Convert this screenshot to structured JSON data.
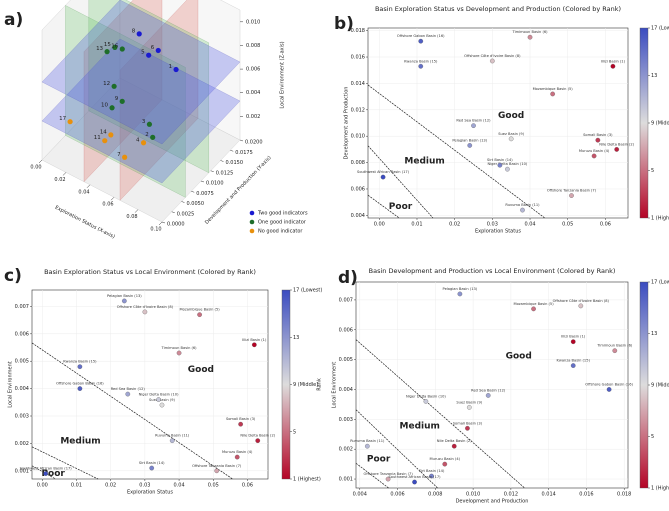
{
  "chart_data": [
    {
      "type": "scatter3d",
      "panel_label": "a)",
      "xlabel": "Exploration Status (X-axis)",
      "ylabel": "Development and Production (Y-axis)",
      "zlabel": "Local Environment (Z-axis)",
      "xlim": [
        0,
        0.1
      ],
      "ylim": [
        0,
        0.02
      ],
      "zlim": [
        0,
        0.011
      ],
      "xticks": [
        {
          "value": 0,
          "label": "0.00"
        },
        0.02,
        0.04,
        0.06,
        0.08,
        {
          "value": 0.1,
          "label": "0.10"
        }
      ],
      "yticks": [
        {
          "value": 0,
          "label": "0.0000"
        },
        0.0025,
        {
          "value": 0.005,
          "label": "0.0050"
        },
        0.0075,
        {
          "value": 0.01,
          "label": "0.0100"
        },
        0.0125,
        {
          "value": 0.015,
          "label": "0.0150"
        },
        0.0175,
        {
          "value": 0.02,
          "label": "0.0200"
        }
      ],
      "zticks": [
        0.002,
        0.004,
        0.006,
        0.008,
        {
          "value": 0.01,
          "label": "0.010"
        }
      ],
      "groups": [
        {
          "name": "Two good indicators",
          "color": "#1a1ad0"
        },
        {
          "name": "One good indicator",
          "color": "#1e6e2a"
        },
        {
          "name": "No good indicator",
          "color": "#e8900c"
        }
      ],
      "ranks": [
        1,
        2,
        3,
        4,
        5,
        6,
        7,
        8,
        9,
        10,
        11,
        12,
        13,
        14,
        15,
        16,
        17
      ],
      "group": [
        0,
        1,
        1,
        2,
        0,
        0,
        2,
        0,
        1,
        1,
        2,
        1,
        1,
        2,
        1,
        1,
        2
      ],
      "x": [
        0.062,
        0.063,
        0.058,
        0.057,
        0.046,
        0.04,
        0.051,
        0.03,
        0.035,
        0.034,
        0.038,
        0.025,
        0.024,
        0.032,
        0.011,
        0.011,
        0.001
      ],
      "y": [
        0.0153,
        0.009,
        0.0097,
        0.0085,
        0.0132,
        0.0175,
        0.0055,
        0.0157,
        0.0098,
        0.0075,
        0.0044,
        0.0108,
        0.0093,
        0.0078,
        0.0153,
        0.0172,
        0.0069
      ],
      "z": [
        0.0056,
        0.0021,
        0.0027,
        0.0015,
        0.0067,
        0.0053,
        0.001,
        0.0068,
        0.0034,
        0.0036,
        0.0021,
        0.0038,
        0.0072,
        0.0011,
        0.0048,
        0.004,
        0.0009
      ]
    },
    {
      "type": "scatter",
      "panel_label": "b)",
      "title": "Basin Exploration Status vs Development and Production (Colored by Rank)",
      "xlabel": "Exploration Status",
      "ylabel": "Development and Production",
      "xlim": [
        -0.003,
        0.066
      ],
      "ylim": [
        0.0038,
        0.0182
      ],
      "xticks": [
        {
          "value": 0,
          "label": "0.00"
        },
        0.01,
        0.02,
        0.03,
        0.04,
        0.05,
        0.06
      ],
      "yticks": [
        0.004,
        0.006,
        0.008,
        {
          "value": 0.01,
          "label": "0.010"
        },
        0.012,
        0.014,
        0.016,
        0.018
      ],
      "grid": true,
      "regions": [
        "Good",
        "Medium",
        "Poor"
      ],
      "labels": [
        "Illizi Basin (1)",
        "Nile Delta Basin (2)",
        "Somali Basin (3)",
        "Muruzu Basin (4)",
        "Mozambique Basin (5)",
        "Timimoun Basin (6)",
        "Offshore Tanzania Basin (7)",
        "Offshore Côte d'Ivoire Basin (8)",
        "Suez Basin (9)",
        "Niger Delta Basin (10)",
        "Ruvuma Basin (11)",
        "Red Sea Basin (12)",
        "Pelagian Basin (13)",
        "Sirt Basin (14)",
        "Kwanza Basin (15)",
        "Offshore Gabon Basin (16)",
        "Southwest African Basin (17)"
      ],
      "ranks": [
        1,
        2,
        3,
        4,
        5,
        6,
        7,
        8,
        9,
        10,
        11,
        12,
        13,
        14,
        15,
        16,
        17
      ],
      "x": [
        0.062,
        0.063,
        0.058,
        0.057,
        0.046,
        0.04,
        0.051,
        0.03,
        0.035,
        0.034,
        0.038,
        0.025,
        0.024,
        0.032,
        0.011,
        0.011,
        0.001
      ],
      "y": [
        0.0153,
        0.009,
        0.0097,
        0.0085,
        0.0132,
        0.0175,
        0.0055,
        0.0157,
        0.0098,
        0.0075,
        0.0044,
        0.0108,
        0.0093,
        0.0078,
        0.0153,
        0.0172,
        0.0069
      ],
      "colorbar": {
        "label": "Rank",
        "clim": [
          1,
          17
        ],
        "colors": [
          "#b40426",
          "#dddcdc",
          "#3b4cc0"
        ],
        "ticks": [
          {
            "value": 17,
            "label": "17 (Lowest)"
          },
          13,
          {
            "value": 9,
            "label": "9 (Middle)"
          },
          5,
          {
            "value": 1,
            "label": "1 (Highest)"
          }
        ]
      }
    },
    {
      "type": "scatter",
      "panel_label": "c)",
      "title": "Basin Exploration Status vs Local Environment (Colored by Rank)",
      "xlabel": "Exploration Status",
      "ylabel": "Local Environment",
      "xlim": [
        -0.003,
        0.066
      ],
      "ylim": [
        0.0007,
        0.0076
      ],
      "xticks": [
        {
          "value": 0,
          "label": "0.00"
        },
        0.01,
        0.02,
        0.03,
        0.04,
        0.05,
        0.06
      ],
      "yticks": [
        0.001,
        0.002,
        0.003,
        0.004,
        0.005,
        0.006,
        0.007
      ],
      "grid": true,
      "regions": [
        "Good",
        "Medium",
        "Poor"
      ],
      "labels": [
        "Illizi Basin (1)",
        "Nile Delta Basin (2)",
        "Somali Basin (3)",
        "Muruzu Basin (4)",
        "Mozambique Basin (5)",
        "Timimoun Basin (6)",
        "Offshore Tanzania Basin (7)",
        "Offshore Côte d'Ivoire Basin (8)",
        "Suez Basin (9)",
        "Niger Delta Basin (10)",
        "Ruvuma Basin (11)",
        "Red Sea Basin (12)",
        "Pelagian Basin (13)",
        "Sirt Basin (14)",
        "Kwanza Basin (15)",
        "Offshore Gabon Basin (16)",
        "Southwest African Basin (17)"
      ],
      "ranks": [
        1,
        2,
        3,
        4,
        5,
        6,
        7,
        8,
        9,
        10,
        11,
        12,
        13,
        14,
        15,
        16,
        17
      ],
      "x": [
        0.062,
        0.063,
        0.058,
        0.057,
        0.046,
        0.04,
        0.051,
        0.03,
        0.035,
        0.034,
        0.038,
        0.025,
        0.024,
        0.032,
        0.011,
        0.011,
        0.001
      ],
      "y": [
        0.0056,
        0.0021,
        0.0027,
        0.0015,
        0.0067,
        0.0053,
        0.001,
        0.0068,
        0.0034,
        0.0036,
        0.0021,
        0.0038,
        0.0072,
        0.0011,
        0.0048,
        0.004,
        0.0009
      ],
      "colorbar": {
        "label": "Rank",
        "clim": [
          1,
          17
        ],
        "colors": [
          "#b40426",
          "#dddcdc",
          "#3b4cc0"
        ],
        "ticks": [
          {
            "value": 17,
            "label": "17 (Lowest)"
          },
          13,
          {
            "value": 9,
            "label": "9 (Middle)"
          },
          5,
          {
            "value": 1,
            "label": "1 (Highest)"
          }
        ]
      }
    },
    {
      "type": "scatter",
      "panel_label": "d)",
      "title": "Basin Development and Production vs Local Environment (Colored by Rank)",
      "xlabel": "Development and Production",
      "ylabel": "Local Environment",
      "xlim": [
        0.0038,
        0.0182
      ],
      "ylim": [
        0.0007,
        0.0076
      ],
      "xticks": [
        0.004,
        0.006,
        0.008,
        {
          "value": 0.01,
          "label": "0.010"
        },
        0.012,
        0.014,
        0.016,
        0.018
      ],
      "yticks": [
        0.001,
        0.002,
        0.003,
        0.004,
        0.005,
        0.006,
        0.007
      ],
      "grid": true,
      "regions": [
        "Good",
        "Medium",
        "Poor"
      ],
      "labels": [
        "Illizi Basin (1)",
        "Nile Delta Basin (2)",
        "Somali Basin (3)",
        "Muruzu Basin (4)",
        "Mozambique Basin (5)",
        "Timimoun Basin (6)",
        "Offshore Tanzania Basin (7)",
        "Offshore Côte d'Ivoire Basin (8)",
        "Suez Basin (9)",
        "Niger Delta Basin (10)",
        "Ruvuma Basin (11)",
        "Red Sea Basin (12)",
        "Pelagian Basin (13)",
        "Sirt Basin (14)",
        "Kwanza Basin (15)",
        "Offshore Gabon Basin (16)",
        "Southwest African Basin (17)"
      ],
      "ranks": [
        1,
        2,
        3,
        4,
        5,
        6,
        7,
        8,
        9,
        10,
        11,
        12,
        13,
        14,
        15,
        16,
        17
      ],
      "x": [
        0.0153,
        0.009,
        0.0097,
        0.0085,
        0.0132,
        0.0175,
        0.0055,
        0.0157,
        0.0098,
        0.0075,
        0.0044,
        0.0108,
        0.0093,
        0.0078,
        0.0153,
        0.0172,
        0.0069
      ],
      "y": [
        0.0056,
        0.0021,
        0.0027,
        0.0015,
        0.0067,
        0.0053,
        0.001,
        0.0068,
        0.0034,
        0.0036,
        0.0021,
        0.0038,
        0.0072,
        0.0011,
        0.0048,
        0.004,
        0.0009
      ],
      "colorbar": {
        "label": "Rank",
        "clim": [
          1,
          17
        ],
        "colors": [
          "#b40426",
          "#dddcdc",
          "#3b4cc0"
        ],
        "ticks": [
          {
            "value": 17,
            "label": "17 (Lowest)"
          },
          13,
          {
            "value": 9,
            "label": "9 (Middle)"
          },
          5,
          {
            "value": 1,
            "label": "1 (Highest)"
          }
        ]
      }
    }
  ]
}
